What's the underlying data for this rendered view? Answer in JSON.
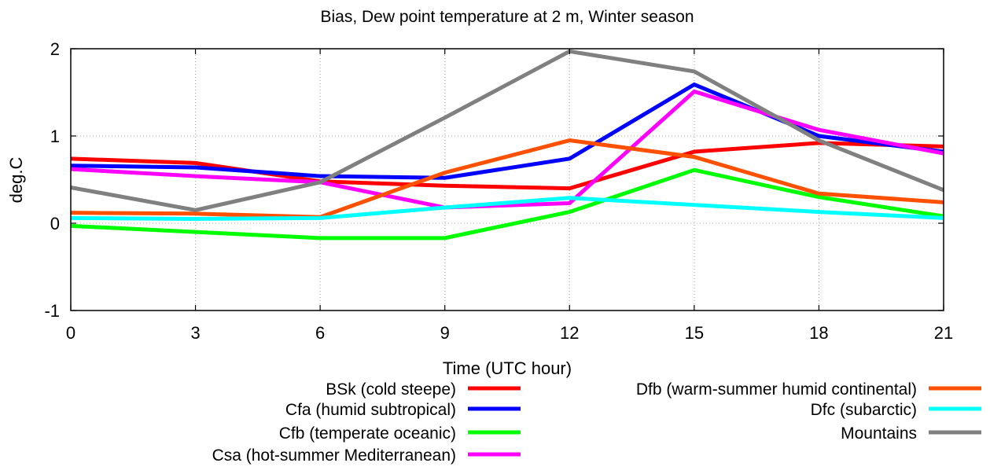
{
  "chart_data": {
    "type": "line",
    "title": "Bias, Dew point temperature at 2 m, Winter season",
    "xlabel": "Time (UTC hour)",
    "ylabel": "deg.C",
    "x": [
      0,
      3,
      6,
      9,
      12,
      15,
      18,
      21
    ],
    "xlim": [
      0,
      21
    ],
    "ylim": [
      -1,
      2
    ],
    "xticks": [
      "0",
      "3",
      "6",
      "9",
      "12",
      "15",
      "18",
      "21"
    ],
    "yticks": [
      "-1",
      "0",
      "1",
      "2"
    ],
    "grid": true,
    "legend_position": "bottom",
    "series": [
      {
        "name": "BSk (cold steepe)",
        "color": "#ff0000",
        "values": [
          0.74,
          0.69,
          0.48,
          0.43,
          0.4,
          0.82,
          0.92,
          0.88
        ]
      },
      {
        "name": "Cfa (humid subtropical)",
        "color": "#0000ff",
        "values": [
          0.66,
          0.64,
          0.54,
          0.52,
          0.74,
          1.59,
          1.0,
          0.82
        ]
      },
      {
        "name": "Cfb (temperate oceanic)",
        "color": "#00ff00",
        "values": [
          -0.03,
          -0.1,
          -0.17,
          -0.17,
          0.13,
          0.61,
          0.3,
          0.08
        ]
      },
      {
        "name": "Csa (hot-summer Mediterranean)",
        "color": "#ff00ff",
        "values": [
          0.62,
          0.54,
          0.47,
          0.18,
          0.23,
          1.51,
          1.07,
          0.8
        ]
      },
      {
        "name": "Dfb (warm-summer humid continental)",
        "color": "#ff5000",
        "values": [
          0.12,
          0.11,
          0.07,
          0.58,
          0.95,
          0.76,
          0.34,
          0.24
        ]
      },
      {
        "name": "Dfc (subarctic)",
        "color": "#00ffff",
        "values": [
          0.06,
          0.05,
          0.06,
          0.18,
          0.29,
          0.21,
          0.13,
          0.06
        ]
      },
      {
        "name": "Mountains",
        "color": "#808080",
        "values": [
          0.41,
          0.15,
          0.47,
          1.21,
          1.97,
          1.74,
          0.95,
          0.38
        ]
      }
    ]
  }
}
